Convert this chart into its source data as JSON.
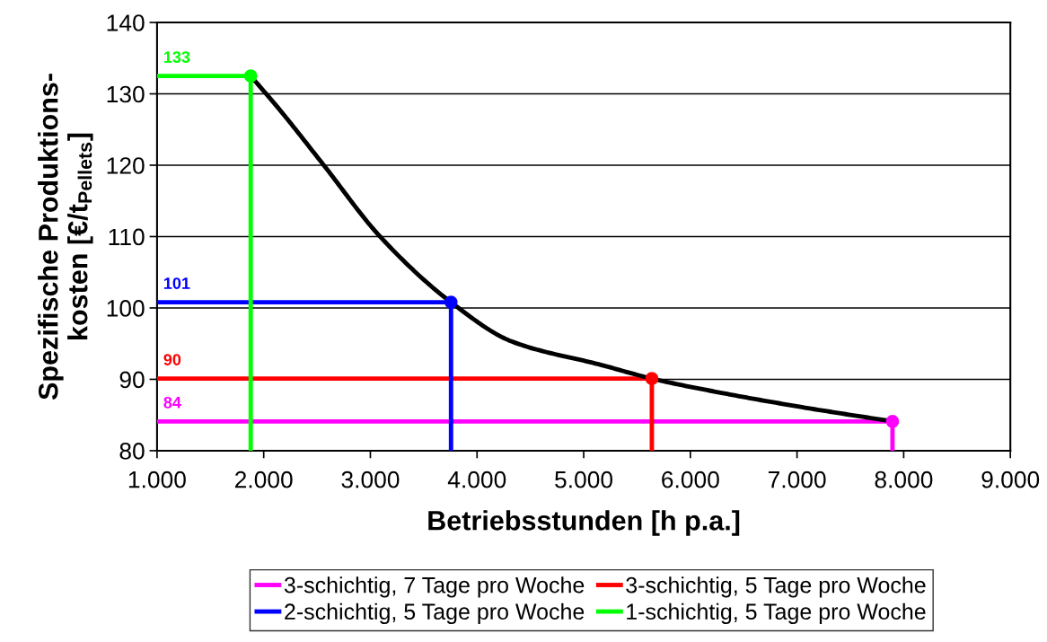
{
  "chart_data": {
    "type": "line",
    "xlabel": "Betriebsstunden [h p.a.]",
    "ylabel": "Spezifische Produktions-\nkosten [€/t$_{Pellets}$]",
    "xlim": [
      1000,
      9000
    ],
    "xticks": [
      {
        "value": 1000,
        "label": "1.000"
      },
      {
        "value": 2000,
        "label": "2.000"
      },
      {
        "value": 3000,
        "label": "3.000"
      },
      {
        "value": 4000,
        "label": "4.000"
      },
      {
        "value": 5000,
        "label": "5.000"
      },
      {
        "value": 6000,
        "label": "6.000"
      },
      {
        "value": 7000,
        "label": "7.000"
      },
      {
        "value": 8000,
        "label": "8.000"
      },
      {
        "value": 9000,
        "label": "9.000"
      }
    ],
    "ylim": [
      80,
      140
    ],
    "yticks": [
      80,
      90,
      100,
      110,
      120,
      130,
      140
    ],
    "grid": "y",
    "legend": "bottom",
    "line_style": "solid",
    "series": [
      {
        "color": "#000000",
        "x": [
          1878,
          2137,
          2558,
          3091,
          3756,
          4326,
          5168,
          5639,
          6292,
          7046,
          7895
        ],
        "values": [
          132.5,
          128.0,
          120.1,
          110.0,
          100.8,
          95.3,
          92.0,
          90.1,
          88.1,
          86.1,
          84.1
        ],
        "marker": "none"
      },
      {
        "name": "3-schichtig, 7 Tage pro Woche",
        "color": "#ff00ff",
        "x": [
          1000,
          7895,
          7895
        ],
        "values": [
          84.1,
          84.1,
          80
        ],
        "value_labels": [
          "84",
          null,
          null
        ],
        "marker": "none"
      },
      {
        "name": "3-schichtig, 5 Tage pro Woche",
        "color": "#ff0000",
        "x": [
          1000,
          5639,
          5639
        ],
        "values": [
          90.1,
          90.1,
          80
        ],
        "value_labels": [
          "90",
          null,
          null
        ],
        "marker": "none"
      },
      {
        "name": "2-schichtig, 5 Tage pro Woche",
        "color": "#0000ff",
        "x": [
          1000,
          3756,
          3756
        ],
        "values": [
          100.8,
          100.8,
          80
        ],
        "value_labels": [
          "101",
          null,
          null
        ],
        "marker": "none"
      },
      {
        "name": "1-schichtig, 5 Tage pro Woche",
        "color": "#00ff00",
        "x": [
          1000,
          1878,
          1878
        ],
        "values": [
          132.5,
          132.5,
          80
        ],
        "value_labels": [
          "133",
          null,
          null
        ],
        "marker": "none"
      },
      {
        "type": "scatter",
        "color": "#ff00ff",
        "x": [
          7895
        ],
        "values": [
          84.1
        ],
        "marker": "circle"
      },
      {
        "type": "scatter",
        "color": "#ff0000",
        "x": [
          5639
        ],
        "values": [
          90.1
        ],
        "marker": "circle"
      },
      {
        "type": "scatter",
        "color": "#0000ff",
        "x": [
          3756
        ],
        "values": [
          100.8
        ],
        "marker": "circle"
      },
      {
        "type": "scatter",
        "color": "#00ff00",
        "x": [
          1878
        ],
        "values": [
          132.5
        ],
        "marker": "circle"
      }
    ]
  }
}
